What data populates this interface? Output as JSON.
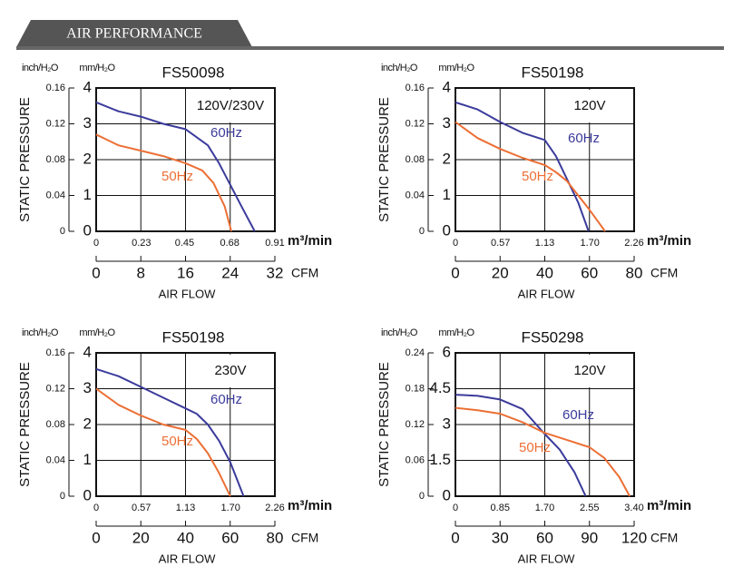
{
  "header": {
    "title": "AIR PERFORMANCE"
  },
  "chart_data": [
    {
      "type": "line",
      "title": "FS50098",
      "annotation": "120V/230V",
      "y_label": "STATIC PRESSURE",
      "x_label": "AIR FLOW",
      "y_unit": "mm/H₂O",
      "y2_unit": "inch/H₂O",
      "x_unit": "CFM",
      "x2_unit": "m³/min",
      "xlim": [
        0,
        32
      ],
      "xticks": [
        0,
        8,
        16,
        24,
        32
      ],
      "x2lim": [
        0,
        0.91
      ],
      "x2ticks": [
        0,
        0.23,
        0.45,
        0.68,
        0.91
      ],
      "ylim": [
        0,
        4
      ],
      "yticks": [
        0,
        1,
        2,
        3,
        4
      ],
      "y2lim": [
        0,
        0.16
      ],
      "y2ticks": [
        0,
        0.04,
        0.08,
        0.12,
        0.16
      ],
      "grid": true,
      "series": [
        {
          "name": "60Hz",
          "color": "#3b3b9c",
          "x": [
            0,
            4,
            8,
            12,
            16,
            20,
            22,
            24,
            26,
            28.4
          ],
          "values": [
            3.6,
            3.35,
            3.2,
            3.0,
            2.85,
            2.4,
            1.9,
            1.3,
            0.7,
            0
          ]
        },
        {
          "name": "50Hz",
          "color": "#ec6f35",
          "x": [
            0,
            4,
            8,
            12,
            16,
            19,
            21,
            23,
            24.2
          ],
          "values": [
            2.7,
            2.4,
            2.25,
            2.1,
            1.9,
            1.7,
            1.35,
            0.7,
            0
          ]
        }
      ]
    },
    {
      "type": "line",
      "title": "FS50198",
      "annotation": "120V",
      "y_label": "STATIC PRESSURE",
      "x_label": "AIR FLOW",
      "y_unit": "mm/H₂O",
      "y2_unit": "inch/H₂O",
      "x_unit": "CFM",
      "x2_unit": "m³/min",
      "xlim": [
        0,
        80
      ],
      "xticks": [
        0,
        20,
        40,
        60,
        80
      ],
      "x2lim": [
        0,
        2.26
      ],
      "x2ticks": [
        0,
        0.57,
        1.13,
        {
          "value": 1.7,
          "label": "1.70"
        },
        2.26
      ],
      "ylim": [
        0,
        4
      ],
      "yticks": [
        0,
        1,
        2,
        3,
        4
      ],
      "y2lim": [
        0,
        0.16
      ],
      "y2ticks": [
        0,
        0.04,
        0.08,
        0.12,
        0.16
      ],
      "grid": true,
      "series": [
        {
          "name": "60Hz",
          "color": "#3b3b9c",
          "x": [
            0,
            10,
            20,
            30,
            40,
            45,
            50,
            55,
            59.6
          ],
          "values": [
            3.6,
            3.4,
            3.05,
            2.75,
            2.55,
            2.1,
            1.45,
            0.8,
            0
          ]
        },
        {
          "name": "50Hz",
          "color": "#ec6f35",
          "x": [
            0,
            10,
            20,
            30,
            40,
            45,
            50,
            55,
            60,
            67
          ],
          "values": [
            3.05,
            2.6,
            2.3,
            2.05,
            1.85,
            1.65,
            1.4,
            1.0,
            0.6,
            0
          ]
        }
      ]
    },
    {
      "type": "line",
      "title": "FS50198",
      "annotation": "230V",
      "y_label": "STATIC PRESSURE",
      "x_label": "AIR FLOW",
      "y_unit": "mm/H₂O",
      "y2_unit": "inch/H₂O",
      "x_unit": "CFM",
      "x2_unit": "m³/min",
      "xlim": [
        0,
        80
      ],
      "xticks": [
        0,
        20,
        40,
        60,
        80
      ],
      "x2lim": [
        0,
        2.26
      ],
      "x2ticks": [
        0,
        0.57,
        1.13,
        {
          "value": 1.7,
          "label": "1.70"
        },
        2.26
      ],
      "ylim": [
        0,
        4
      ],
      "yticks": [
        0,
        1,
        2,
        3,
        4
      ],
      "y2lim": [
        0,
        0.16
      ],
      "y2ticks": [
        0,
        0.04,
        0.08,
        0.12,
        0.16
      ],
      "grid": true,
      "series": [
        {
          "name": "60Hz",
          "color": "#3b3b9c",
          "x": [
            0,
            10,
            20,
            30,
            40,
            45,
            50,
            55,
            60,
            66
          ],
          "values": [
            3.55,
            3.35,
            3.05,
            2.75,
            2.45,
            2.3,
            2.0,
            1.55,
            0.95,
            0
          ]
        },
        {
          "name": "50Hz",
          "color": "#ec6f35",
          "x": [
            0,
            10,
            20,
            30,
            40,
            45,
            50,
            55,
            60
          ],
          "values": [
            3.0,
            2.55,
            2.25,
            2.0,
            1.85,
            1.6,
            1.2,
            0.65,
            0
          ]
        }
      ]
    },
    {
      "type": "line",
      "title": "FS50298",
      "annotation": "120V",
      "y_label": "STATIC PRESSURE",
      "x_label": "AIR FLOW",
      "y_unit": "mm/H₂O",
      "y2_unit": "inch/H₂O",
      "x_unit": "CFM",
      "x2_unit": "m³/min",
      "xlim": [
        0,
        120
      ],
      "xticks": [
        0,
        30,
        60,
        90,
        120
      ],
      "x2lim": [
        0,
        3.4
      ],
      "x2ticks": [
        0,
        0.85,
        {
          "value": 1.7,
          "label": "1.70"
        },
        2.55,
        {
          "value": 3.4,
          "label": "3.40"
        }
      ],
      "ylim": [
        0,
        6
      ],
      "yticks": [
        0,
        1.5,
        3,
        4.5,
        6
      ],
      "y2lim": [
        0,
        0.24
      ],
      "y2ticks": [
        0,
        0.06,
        0.12,
        0.18,
        0.24
      ],
      "grid": true,
      "series": [
        {
          "name": "60Hz",
          "color": "#3b3b9c",
          "x": [
            0,
            15,
            30,
            45,
            60,
            70,
            80,
            87.5
          ],
          "values": [
            4.25,
            4.2,
            4.05,
            3.65,
            2.6,
            1.95,
            1.0,
            0
          ]
        },
        {
          "name": "50Hz",
          "color": "#ec6f35",
          "x": [
            0,
            15,
            30,
            45,
            60,
            75,
            90,
            100,
            110,
            117
          ],
          "values": [
            3.7,
            3.6,
            3.45,
            3.1,
            2.65,
            2.35,
            2.05,
            1.6,
            0.8,
            0
          ]
        }
      ]
    }
  ]
}
